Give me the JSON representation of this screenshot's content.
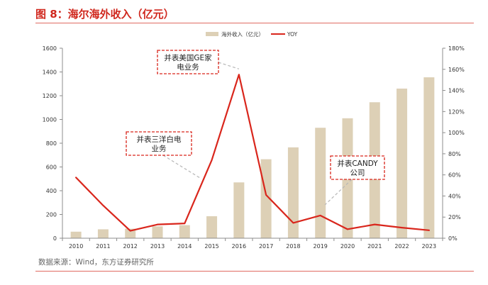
{
  "header": {
    "title": "图 8：海尔海外收入（亿元）"
  },
  "footer": {
    "source": "数据来源：Wind，东方证券研究所"
  },
  "colors": {
    "bar": "#ddd0b6",
    "line": "#d9261c",
    "title": "#d0271d",
    "annotation_border": "#d9261c",
    "leader": "#b7b7b7"
  },
  "chart_data": {
    "type": "bar",
    "categories": [
      "2010",
      "2011",
      "2012",
      "2013",
      "2014",
      "2015",
      "2016",
      "2017",
      "2018",
      "2019",
      "2020",
      "2021",
      "2022",
      "2023"
    ],
    "series": [
      {
        "name": "海外收入（亿元）",
        "type": "bar",
        "axis": "left",
        "values": [
          55,
          75,
          80,
          100,
          110,
          185,
          470,
          665,
          765,
          930,
          1010,
          1145,
          1260,
          1355
        ]
      },
      {
        "name": "YOY",
        "type": "line",
        "axis": "right",
        "values": [
          0.575,
          0.31,
          0.07,
          0.13,
          0.14,
          0.74,
          1.55,
          0.41,
          0.145,
          0.215,
          0.085,
          0.13,
          0.1,
          0.075
        ]
      }
    ],
    "y_left": {
      "min": 0,
      "max": 1600,
      "ticks": [
        "0",
        "200",
        "400",
        "600",
        "800",
        "1000",
        "1200",
        "1400",
        "1600"
      ]
    },
    "y_right": {
      "min": 0,
      "max": 1.8,
      "ticks": [
        "0%",
        "20%",
        "40%",
        "60%",
        "80%",
        "100%",
        "120%",
        "140%",
        "160%",
        "180%"
      ]
    },
    "legend": {
      "position": "top-right"
    },
    "grid": false,
    "annotations": [
      {
        "lines": [
          "并表美国GE家",
          "电业务"
        ],
        "points_to": "2016"
      },
      {
        "lines": [
          "并表三洋白电",
          "业务"
        ],
        "points_to": "2015"
      },
      {
        "lines": [
          "并表CANDY",
          "公司"
        ],
        "points_to": "2019"
      }
    ]
  }
}
